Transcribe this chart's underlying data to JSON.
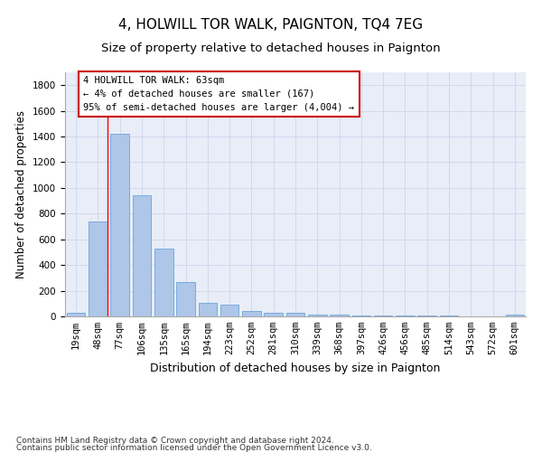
{
  "title": "4, HOLWILL TOR WALK, PAIGNTON, TQ4 7EG",
  "subtitle": "Size of property relative to detached houses in Paignton",
  "xlabel": "Distribution of detached houses by size in Paignton",
  "ylabel": "Number of detached properties",
  "categories": [
    "19sqm",
    "48sqm",
    "77sqm",
    "106sqm",
    "135sqm",
    "165sqm",
    "194sqm",
    "223sqm",
    "252sqm",
    "281sqm",
    "310sqm",
    "339sqm",
    "368sqm",
    "397sqm",
    "426sqm",
    "456sqm",
    "485sqm",
    "514sqm",
    "543sqm",
    "572sqm",
    "601sqm"
  ],
  "values": [
    25,
    740,
    1420,
    940,
    530,
    265,
    105,
    95,
    40,
    28,
    25,
    15,
    15,
    10,
    8,
    5,
    5,
    5,
    3,
    3,
    15
  ],
  "bar_color": "#aec6e8",
  "bar_edge_color": "#5b9bd5",
  "grid_color": "#d0d8ec",
  "background_color": "#ffffff",
  "plot_bg_color": "#e8edf8",
  "red_line_x": 1.43,
  "annotation_text": "4 HOLWILL TOR WALK: 63sqm\n← 4% of detached houses are smaller (167)\n95% of semi-detached houses are larger (4,004) →",
  "annotation_box_color": "#ffffff",
  "annotation_border_color": "#cc0000",
  "footer_line1": "Contains HM Land Registry data © Crown copyright and database right 2024.",
  "footer_line2": "Contains public sector information licensed under the Open Government Licence v3.0.",
  "ylim": [
    0,
    1900
  ],
  "yticks": [
    0,
    200,
    400,
    600,
    800,
    1000,
    1200,
    1400,
    1600,
    1800
  ],
  "title_fontsize": 11,
  "subtitle_fontsize": 9.5,
  "xlabel_fontsize": 9,
  "ylabel_fontsize": 8.5,
  "tick_fontsize": 7.5,
  "annot_fontsize": 7.5,
  "footer_fontsize": 6.5
}
